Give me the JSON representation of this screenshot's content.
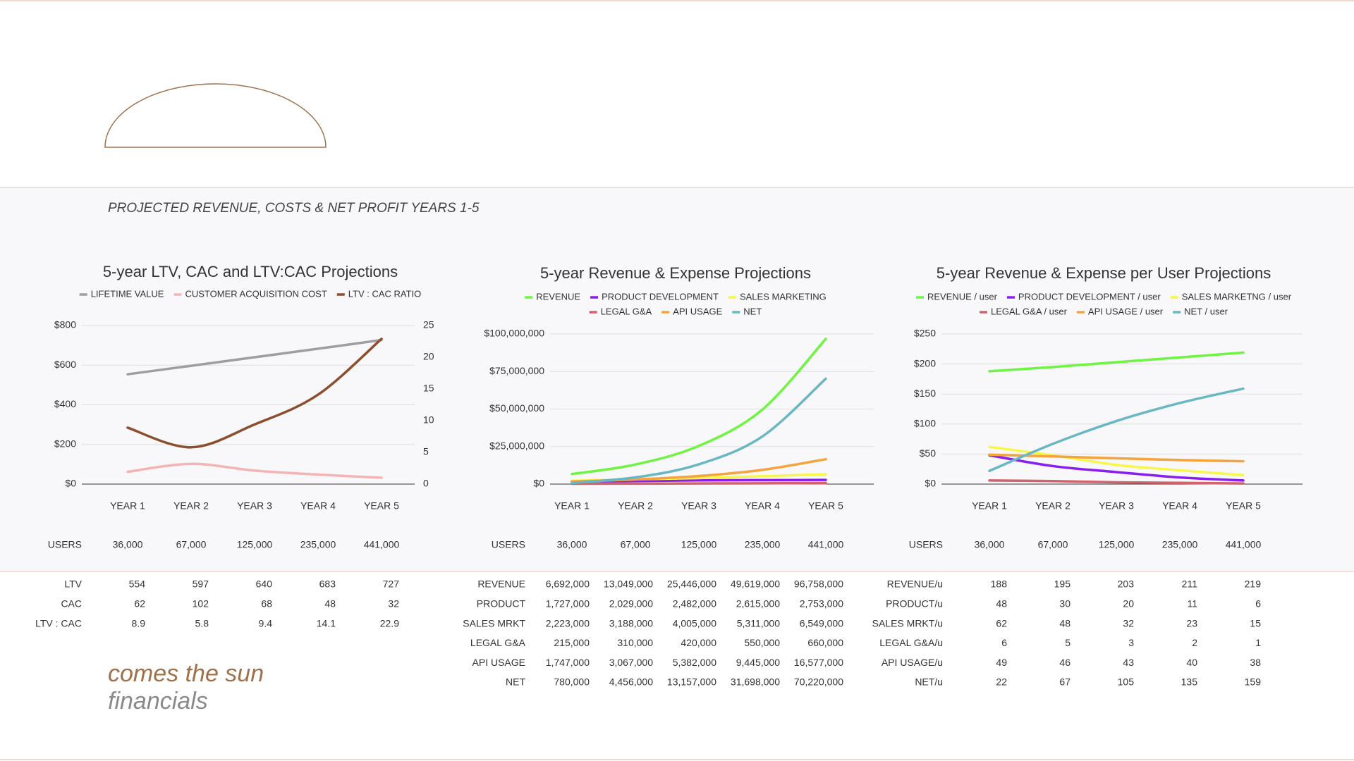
{
  "heading": "PROJECTED REVENUE, COSTS & NET PROFIT YEARS 1-5",
  "brand": {
    "line1": "comes the sun",
    "line2": "financials"
  },
  "chart_data": [
    {
      "type": "line",
      "title": "5-year LTV, CAC and LTV:CAC Projections",
      "categories": [
        "YEAR 1",
        "YEAR 2",
        "YEAR 3",
        "YEAR 4",
        "YEAR 5"
      ],
      "series": [
        {
          "name": "LIFETIME VALUE",
          "color": "#9e9e9e",
          "values": [
            554,
            597,
            640,
            683,
            727
          ]
        },
        {
          "name": "CUSTOMER ACQUISITION COST",
          "color": "#f4b4b4",
          "values": [
            62,
            102,
            68,
            48,
            32
          ]
        },
        {
          "name": "LTV : CAC RATIO",
          "color": "#8b4f2e",
          "axis": "y2",
          "values": [
            8.9,
            5.8,
            9.4,
            14.1,
            22.9
          ]
        }
      ],
      "ylim": [
        0,
        800
      ],
      "yticks": [
        {
          "value": 0,
          "label": "$0"
        },
        {
          "value": 200,
          "label": "$200"
        },
        {
          "value": 400,
          "label": "$400"
        },
        {
          "value": 600,
          "label": "$600"
        },
        {
          "value": 800,
          "label": "$800"
        }
      ],
      "y2lim": [
        0,
        25
      ],
      "y2ticks": [
        0,
        5,
        10,
        15,
        20,
        25
      ],
      "grid": true
    },
    {
      "type": "line",
      "title": "5-year Revenue & Expense Projections",
      "categories": [
        "YEAR 1",
        "YEAR 2",
        "YEAR 3",
        "YEAR 4",
        "YEAR 5"
      ],
      "series": [
        {
          "name": "REVENUE",
          "color": "#6df542",
          "values": [
            6692000,
            13049000,
            25446000,
            49619000,
            96758000
          ]
        },
        {
          "name": "PRODUCT DEVELOPMENT",
          "color": "#8a1ef0",
          "values": [
            1727000,
            2029000,
            2482000,
            2615000,
            2753000
          ]
        },
        {
          "name": "SALES MARKETING",
          "color": "#f7f74a",
          "values": [
            2223000,
            3188000,
            4005000,
            5311000,
            6549000
          ]
        },
        {
          "name": "LEGAL G&A",
          "color": "#d0636b",
          "values": [
            215000,
            310000,
            420000,
            550000,
            660000
          ]
        },
        {
          "name": "API USAGE",
          "color": "#f5a33c",
          "values": [
            1747000,
            3067000,
            5382000,
            9445000,
            16577000
          ]
        },
        {
          "name": "NET",
          "color": "#6ab7c4",
          "values": [
            780000,
            4456000,
            13157000,
            31698000,
            70220000
          ]
        }
      ],
      "ylim": [
        0,
        100000000
      ],
      "yticks": [
        {
          "value": 0,
          "label": "$0"
        },
        {
          "value": 25000000,
          "label": "$25,000,000"
        },
        {
          "value": 50000000,
          "label": "$50,000,000"
        },
        {
          "value": 75000000,
          "label": "$75,000,000"
        },
        {
          "value": 100000000,
          "label": "$100,000,000"
        }
      ],
      "grid": true
    },
    {
      "type": "line",
      "title": "5-year Revenue & Expense per User Projections",
      "categories": [
        "YEAR 1",
        "YEAR 2",
        "YEAR 3",
        "YEAR 4",
        "YEAR 5"
      ],
      "series": [
        {
          "name": "REVENUE / user",
          "color": "#6df542",
          "values": [
            188,
            195,
            203,
            211,
            219
          ]
        },
        {
          "name": "PRODUCT DEVELOPMENT / user",
          "color": "#8a1ef0",
          "values": [
            48,
            30,
            20,
            11,
            6
          ]
        },
        {
          "name": "SALES MARKETNG / user",
          "color": "#f7f74a",
          "values": [
            62,
            48,
            32,
            23,
            15
          ]
        },
        {
          "name": "LEGAL G&A / user",
          "color": "#d0636b",
          "values": [
            6,
            5,
            3,
            2,
            1
          ]
        },
        {
          "name": "API USAGE / user",
          "color": "#f5a33c",
          "values": [
            49,
            46,
            43,
            40,
            38
          ]
        },
        {
          "name": "NET / user",
          "color": "#6ab7c4",
          "values": [
            22,
            67,
            105,
            135,
            159
          ]
        }
      ],
      "ylim": [
        0,
        250
      ],
      "yticks": [
        {
          "value": 0,
          "label": "$0"
        },
        {
          "value": 50,
          "label": "$50"
        },
        {
          "value": 100,
          "label": "$100"
        },
        {
          "value": 150,
          "label": "$150"
        },
        {
          "value": 200,
          "label": "$200"
        },
        {
          "value": 250,
          "label": "$250"
        }
      ],
      "grid": true
    }
  ],
  "tables": [
    {
      "users": [
        "USERS",
        "36,000",
        "67,000",
        "125,000",
        "235,000",
        "441,000"
      ],
      "rows": [
        [
          "LTV",
          "554",
          "597",
          "640",
          "683",
          "727"
        ],
        [
          "CAC",
          "62",
          "102",
          "68",
          "48",
          "32"
        ],
        [
          "LTV : CAC",
          "8.9",
          "5.8",
          "9.4",
          "14.1",
          "22.9"
        ]
      ]
    },
    {
      "users": [
        "USERS",
        "36,000",
        "67,000",
        "125,000",
        "235,000",
        "441,000"
      ],
      "rows": [
        [
          "REVENUE",
          "6,692,000",
          "13,049,000",
          "25,446,000",
          "49,619,000",
          "96,758,000"
        ],
        [
          "PRODUCT",
          "1,727,000",
          "2,029,000",
          "2,482,000",
          "2,615,000",
          "2,753,000"
        ],
        [
          "SALES MRKT",
          "2,223,000",
          "3,188,000",
          "4,005,000",
          "5,311,000",
          "6,549,000"
        ],
        [
          "LEGAL G&A",
          "215,000",
          "310,000",
          "420,000",
          "550,000",
          "660,000"
        ],
        [
          "API USAGE",
          "1,747,000",
          "3,067,000",
          "5,382,000",
          "9,445,000",
          "16,577,000"
        ],
        [
          "NET",
          "780,000",
          "4,456,000",
          "13,157,000",
          "31,698,000",
          "70,220,000"
        ]
      ]
    },
    {
      "users": [
        "USERS",
        "36,000",
        "67,000",
        "125,000",
        "235,000",
        "441,000"
      ],
      "rows": [
        [
          "REVENUE/u",
          "188",
          "195",
          "203",
          "211",
          "219"
        ],
        [
          "PRODUCT/u",
          "48",
          "30",
          "20",
          "11",
          "6"
        ],
        [
          "SALES MRKT/u",
          "62",
          "48",
          "32",
          "23",
          "15"
        ],
        [
          "LEGAL G&A/u",
          "6",
          "5",
          "3",
          "2",
          "1"
        ],
        [
          "API USAGE/u",
          "49",
          "46",
          "43",
          "40",
          "38"
        ],
        [
          "NET/u",
          "22",
          "67",
          "105",
          "135",
          "159"
        ]
      ]
    }
  ]
}
